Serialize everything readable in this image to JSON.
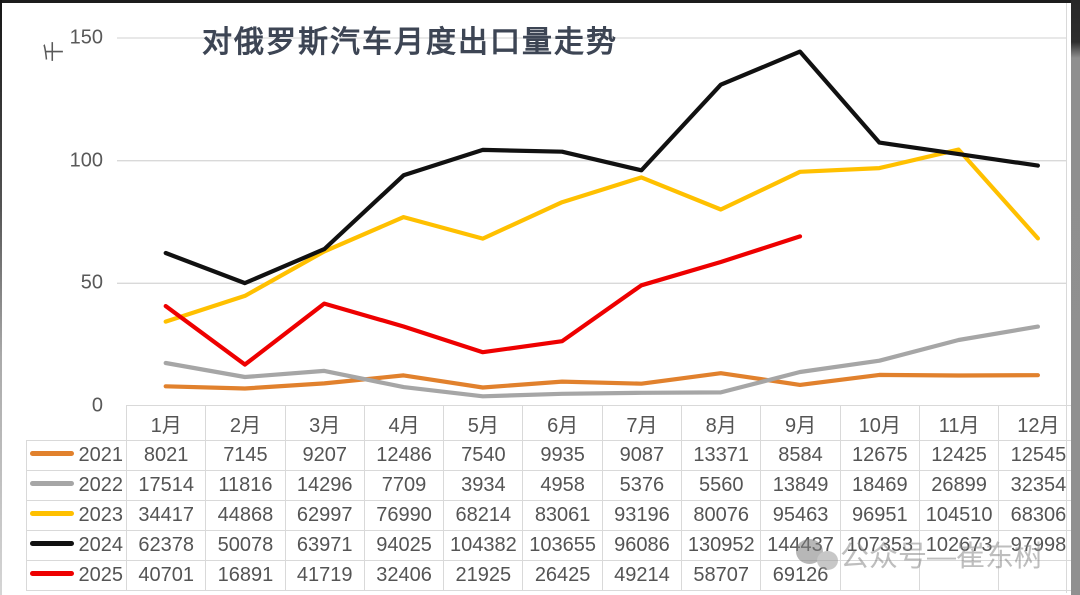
{
  "title": "对俄罗斯汽车月度出口量走势",
  "axis_unit": "千",
  "watermark": {
    "text": "公众号—崔东树"
  },
  "chart_data": {
    "type": "line",
    "title": "对俄罗斯汽车月度出口量走势",
    "categories": [
      "1月",
      "2月",
      "3月",
      "4月",
      "5月",
      "6月",
      "7月",
      "8月",
      "9月",
      "10月",
      "11月",
      "12月"
    ],
    "series": [
      {
        "name": "2021",
        "color": "#E1812D",
        "values": [
          8021,
          7145,
          9207,
          12486,
          7540,
          9935,
          9087,
          13371,
          8584,
          12675,
          12425,
          12545
        ]
      },
      {
        "name": "2022",
        "color": "#A6A6A6",
        "values": [
          17514,
          11816,
          14296,
          7709,
          3934,
          4958,
          5376,
          5560,
          13849,
          18469,
          26899,
          32354
        ]
      },
      {
        "name": "2023",
        "color": "#FFC000",
        "values": [
          34417,
          44868,
          62997,
          76990,
          68214,
          83061,
          93196,
          80076,
          95463,
          96951,
          104510,
          68306
        ]
      },
      {
        "name": "2024",
        "color": "#111111",
        "values": [
          62378,
          50078,
          63971,
          94025,
          104382,
          103655,
          96086,
          130952,
          144437,
          107353,
          102673,
          97998
        ]
      },
      {
        "name": "2025",
        "color": "#EE0000",
        "values": [
          40701,
          16891,
          41719,
          32406,
          21925,
          26425,
          49214,
          58707,
          69126,
          null,
          null,
          null
        ]
      }
    ],
    "ylim": [
      0,
      150
    ],
    "yticks": [
      0,
      50,
      100,
      150
    ],
    "y_value_scale": 1000,
    "grid": true,
    "legend_position": "table-left"
  }
}
